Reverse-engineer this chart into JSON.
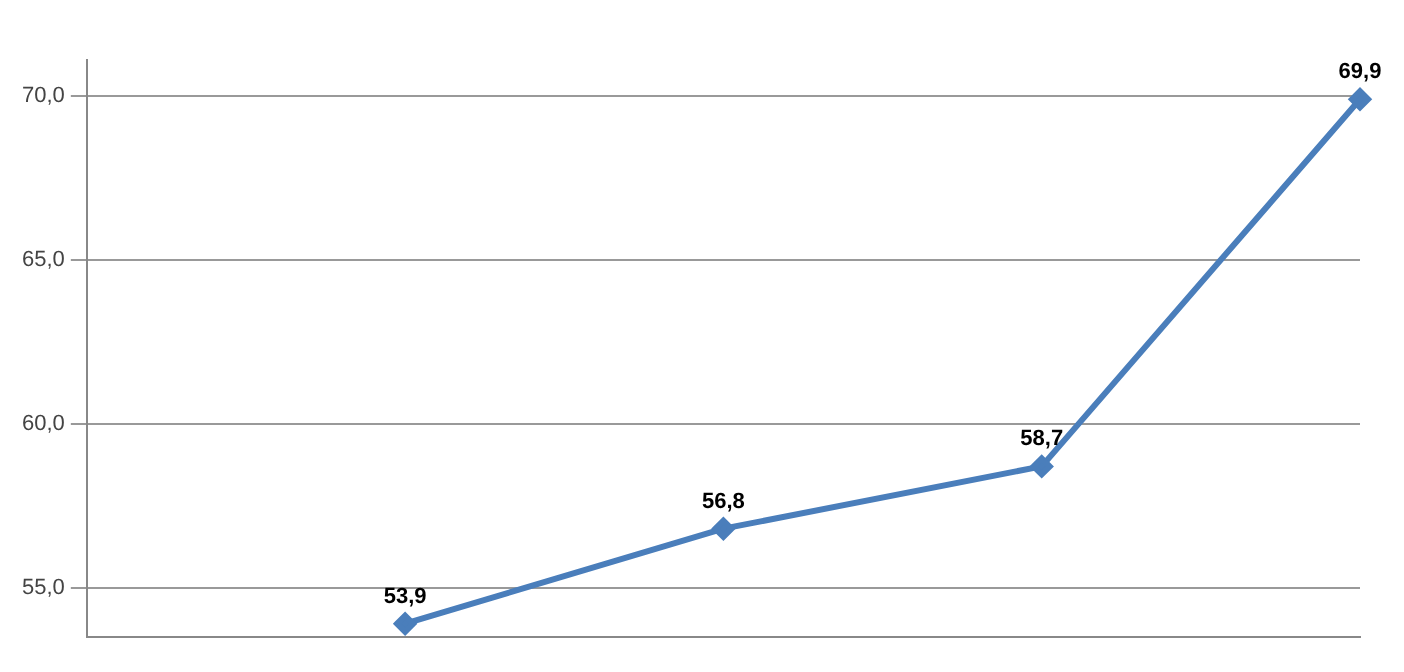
{
  "chart_data": {
    "type": "line",
    "categories": [
      null,
      null,
      null,
      null,
      null
    ],
    "series": [
      {
        "color": "#4a7ebb",
        "values": [
          null,
          53.9,
          56.8,
          58.7,
          69.9
        ],
        "value_labels": [
          null,
          "53,9",
          "56,8",
          "58,7",
          "69,9"
        ]
      }
    ],
    "ylim": [
      53.5,
      71.1
    ],
    "yticks": [
      {
        "value": 55,
        "label": "55,0"
      },
      {
        "value": 60,
        "label": "60,0"
      },
      {
        "value": 65,
        "label": "65,0"
      },
      {
        "value": 70,
        "label": "70,0"
      }
    ],
    "grid": "y",
    "marker": "diamond",
    "line_style": "solid",
    "legend": false,
    "tick_labels": "y"
  }
}
